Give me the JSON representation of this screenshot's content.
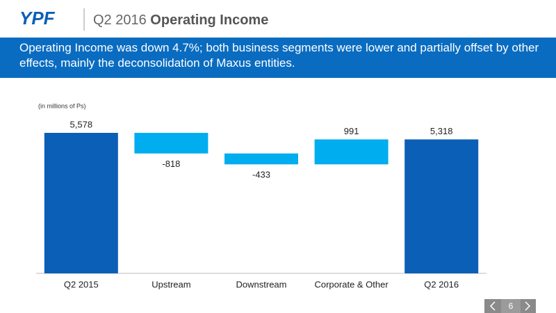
{
  "header": {
    "logo": "YPF",
    "title_prefix": "Q2 2016",
    "title_bold": "Operating Income"
  },
  "banner": "Operating Income was down 4.7%; both business segments were lower and partially offset by other effects, mainly the deconsolidation of Maxus entities.",
  "chart_data": {
    "type": "waterfall",
    "note": "(in millions of Ps)",
    "categories": [
      "Q2 2015",
      "Upstream",
      "Downstream",
      "Corporate & Other",
      "Q2 2016"
    ],
    "values": [
      5578,
      -818,
      -433,
      991,
      5318
    ],
    "value_labels": [
      "5,578",
      "-818",
      "-433",
      "991",
      "5,318"
    ],
    "is_total": [
      true,
      false,
      false,
      false,
      true
    ],
    "total_color": "#0b5fb7",
    "change_color": "#00adee"
  },
  "footer": {
    "page": "6"
  }
}
